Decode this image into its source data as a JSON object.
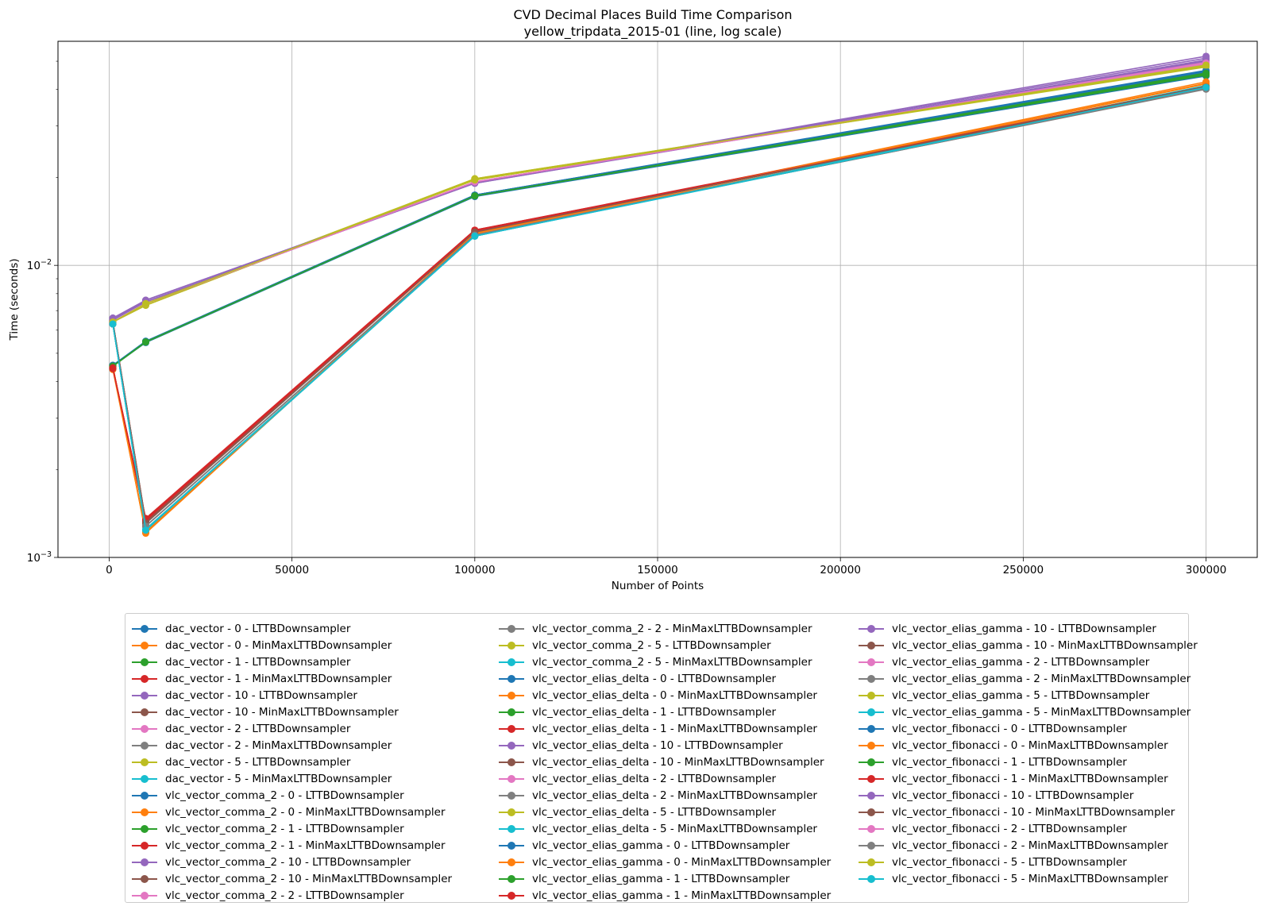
{
  "chart_data": {
    "type": "line",
    "title": "CVD Decimal Places Build Time Comparison",
    "subtitle": "yellow_tripdata_2015-01 (line, log scale)",
    "xlabel": "Number of Points",
    "ylabel": "Time (seconds)",
    "xlim": [
      -14000,
      314000
    ],
    "ylim": [
      0.001,
      0.0585
    ],
    "yscale": "log",
    "grid": true,
    "legend_position": "bottom",
    "x": [
      1000,
      10000,
      100000,
      300000
    ],
    "x_ticks": [
      0,
      50000,
      100000,
      150000,
      200000,
      250000,
      300000
    ],
    "x_tick_labels": [
      "0",
      "50000",
      "100000",
      "150000",
      "200000",
      "250000",
      "300000"
    ],
    "y_ticks": [
      0.001,
      0.01
    ],
    "y_tick_labels": [
      {
        "base": "10",
        "exp": "−3"
      },
      {
        "base": "10",
        "exp": "−2"
      }
    ],
    "palette": [
      "#1f77b4",
      "#ff7f0e",
      "#2ca02c",
      "#d62728",
      "#9467bd",
      "#8c564b",
      "#e377c2",
      "#7f7f7f",
      "#bcbd22",
      "#17becf"
    ],
    "series": [
      {
        "name": "dac_vector - 0 - LTTBDownsampler",
        "values": [
          0.00455,
          0.0055,
          0.0174,
          0.0455
        ]
      },
      {
        "name": "dac_vector - 0 - MinMaxLTTBDownsampler",
        "values": [
          0.0044,
          0.00122,
          0.0128,
          0.0405
        ]
      },
      {
        "name": "dac_vector - 1 - LTTBDownsampler",
        "values": [
          0.00453,
          0.00548,
          0.0173,
          0.0452
        ]
      },
      {
        "name": "dac_vector - 1 - MinMaxLTTBDownsampler",
        "values": [
          0.00443,
          0.00133,
          0.0131,
          0.0408
        ]
      },
      {
        "name": "dac_vector - 10 - LTTBDownsampler",
        "values": [
          0.0065,
          0.0076,
          0.0192,
          0.052
        ]
      },
      {
        "name": "dac_vector - 10 - MinMaxLTTBDownsampler",
        "values": [
          0.0064,
          0.00131,
          0.013,
          0.0407
        ]
      },
      {
        "name": "dac_vector - 2 - LTTBDownsampler",
        "values": [
          0.0064,
          0.0074,
          0.0193,
          0.049
        ]
      },
      {
        "name": "dac_vector - 2 - MinMaxLTTBDownsampler",
        "values": [
          0.0063,
          0.00128,
          0.0127,
          0.0402
        ]
      },
      {
        "name": "dac_vector - 5 - LTTBDownsampler",
        "values": [
          0.0064,
          0.0074,
          0.0198,
          0.048
        ]
      },
      {
        "name": "dac_vector - 5 - MinMaxLTTBDownsampler",
        "values": [
          0.0063,
          0.00124,
          0.0126,
          0.041
        ]
      },
      {
        "name": "vlc_vector_comma_2 - 0 - LTTBDownsampler",
        "values": [
          0.00452,
          0.00544,
          0.0172,
          0.0445
        ]
      },
      {
        "name": "vlc_vector_comma_2 - 0 - MinMaxLTTBDownsampler",
        "values": [
          0.0045,
          0.00121,
          0.0129,
          0.0412
        ]
      },
      {
        "name": "vlc_vector_comma_2 - 1 - LTTBDownsampler",
        "values": [
          0.00451,
          0.00546,
          0.0173,
          0.0448
        ]
      },
      {
        "name": "vlc_vector_comma_2 - 1 - MinMaxLTTBDownsampler",
        "values": [
          0.00445,
          0.00136,
          0.0132,
          0.0404
        ]
      },
      {
        "name": "vlc_vector_comma_2 - 10 - LTTBDownsampler",
        "values": [
          0.0065,
          0.0075,
          0.0191,
          0.0498
        ]
      },
      {
        "name": "vlc_vector_comma_2 - 10 - MinMaxLTTBDownsampler",
        "values": [
          0.0064,
          0.00132,
          0.013,
          0.0409
        ]
      },
      {
        "name": "vlc_vector_comma_2 - 2 - LTTBDownsampler",
        "values": [
          0.0064,
          0.0074,
          0.0193,
          0.0488
        ]
      },
      {
        "name": "vlc_vector_comma_2 - 2 - MinMaxLTTBDownsampler",
        "values": [
          0.0063,
          0.00128,
          0.0127,
          0.0401
        ]
      },
      {
        "name": "vlc_vector_comma_2 - 5 - LTTBDownsampler",
        "values": [
          0.0064,
          0.0074,
          0.0197,
          0.0478
        ]
      },
      {
        "name": "vlc_vector_comma_2 - 5 - MinMaxLTTBDownsampler",
        "values": [
          0.0063,
          0.00124,
          0.0126,
          0.0411
        ]
      },
      {
        "name": "vlc_vector_elias_delta - 0 - LTTBDownsampler",
        "values": [
          0.00454,
          0.00548,
          0.0174,
          0.0465
        ]
      },
      {
        "name": "vlc_vector_elias_delta - 0 - MinMaxLTTBDownsampler",
        "values": [
          0.0045,
          0.00122,
          0.0129,
          0.0418
        ]
      },
      {
        "name": "vlc_vector_elias_delta - 1 - LTTBDownsampler",
        "values": [
          0.00452,
          0.00547,
          0.0173,
          0.0458
        ]
      },
      {
        "name": "vlc_vector_elias_delta - 1 - MinMaxLTTBDownsampler",
        "values": [
          0.00446,
          0.00134,
          0.0131,
          0.0406
        ]
      },
      {
        "name": "vlc_vector_elias_delta - 10 - LTTBDownsampler",
        "values": [
          0.0066,
          0.0075,
          0.0192,
          0.0502
        ]
      },
      {
        "name": "vlc_vector_elias_delta - 10 - MinMaxLTTBDownsampler",
        "values": [
          0.0064,
          0.00131,
          0.013,
          0.0408
        ]
      },
      {
        "name": "vlc_vector_elias_delta - 2 - LTTBDownsampler",
        "values": [
          0.0064,
          0.0074,
          0.0193,
          0.0492
        ]
      },
      {
        "name": "vlc_vector_elias_delta - 2 - MinMaxLTTBDownsampler",
        "values": [
          0.0063,
          0.00128,
          0.0127,
          0.0402
        ]
      },
      {
        "name": "vlc_vector_elias_delta - 5 - LTTBDownsampler",
        "values": [
          0.0064,
          0.0073,
          0.0198,
          0.0482
        ]
      },
      {
        "name": "vlc_vector_elias_delta - 5 - MinMaxLTTBDownsampler",
        "values": [
          0.0063,
          0.00125,
          0.0126,
          0.0413
        ]
      },
      {
        "name": "vlc_vector_elias_gamma - 0 - LTTBDownsampler",
        "values": [
          0.00455,
          0.00549,
          0.0174,
          0.0462
        ]
      },
      {
        "name": "vlc_vector_elias_gamma - 0 - MinMaxLTTBDownsampler",
        "values": [
          0.0045,
          0.00122,
          0.0129,
          0.0425
        ]
      },
      {
        "name": "vlc_vector_elias_gamma - 1 - LTTBDownsampler",
        "values": [
          0.00453,
          0.00547,
          0.0173,
          0.045
        ]
      },
      {
        "name": "vlc_vector_elias_gamma - 1 - MinMaxLTTBDownsampler",
        "values": [
          0.00446,
          0.00135,
          0.0132,
          0.0409
        ]
      },
      {
        "name": "vlc_vector_elias_gamma - 10 - LTTBDownsampler",
        "values": [
          0.0065,
          0.0075,
          0.0191,
          0.0505
        ]
      },
      {
        "name": "vlc_vector_elias_gamma - 10 - MinMaxLTTBDownsampler",
        "values": [
          0.0064,
          0.00132,
          0.013,
          0.041
        ]
      },
      {
        "name": "vlc_vector_elias_gamma - 2 - LTTBDownsampler",
        "values": [
          0.0064,
          0.0074,
          0.0193,
          0.0495
        ]
      },
      {
        "name": "vlc_vector_elias_gamma - 2 - MinMaxLTTBDownsampler",
        "values": [
          0.0063,
          0.00128,
          0.0127,
          0.0403
        ]
      },
      {
        "name": "vlc_vector_elias_gamma - 5 - LTTBDownsampler",
        "values": [
          0.0064,
          0.0073,
          0.0197,
          0.0483
        ]
      },
      {
        "name": "vlc_vector_elias_gamma - 5 - MinMaxLTTBDownsampler",
        "values": [
          0.0063,
          0.00123,
          0.0126,
          0.0405
        ]
      },
      {
        "name": "vlc_vector_fibonacci - 0 - LTTBDownsampler",
        "values": [
          0.00454,
          0.00548,
          0.0174,
          0.046
        ]
      },
      {
        "name": "vlc_vector_fibonacci - 0 - MinMaxLTTBDownsampler",
        "values": [
          0.0045,
          0.00122,
          0.0129,
          0.042
        ]
      },
      {
        "name": "vlc_vector_fibonacci - 1 - LTTBDownsampler",
        "values": [
          0.00452,
          0.00547,
          0.0173,
          0.0455
        ]
      },
      {
        "name": "vlc_vector_fibonacci - 1 - MinMaxLTTBDownsampler",
        "values": [
          0.00446,
          0.00134,
          0.0131,
          0.0407
        ]
      },
      {
        "name": "vlc_vector_fibonacci - 10 - LTTBDownsampler",
        "values": [
          0.0066,
          0.0076,
          0.0192,
          0.0512
        ]
      },
      {
        "name": "vlc_vector_fibonacci - 10 - MinMaxLTTBDownsampler",
        "values": [
          0.0064,
          0.00131,
          0.013,
          0.0408
        ]
      },
      {
        "name": "vlc_vector_fibonacci - 2 - LTTBDownsampler",
        "values": [
          0.0064,
          0.0074,
          0.0193,
          0.0493
        ]
      },
      {
        "name": "vlc_vector_fibonacci - 2 - MinMaxLTTBDownsampler",
        "values": [
          0.0063,
          0.00128,
          0.0127,
          0.0402
        ]
      },
      {
        "name": "vlc_vector_fibonacci - 5 - LTTBDownsampler",
        "values": [
          0.0064,
          0.0074,
          0.0196,
          0.0485
        ]
      },
      {
        "name": "vlc_vector_fibonacci - 5 - MinMaxLTTBDownsampler",
        "values": [
          0.0063,
          0.00124,
          0.0126,
          0.0407
        ]
      }
    ]
  }
}
